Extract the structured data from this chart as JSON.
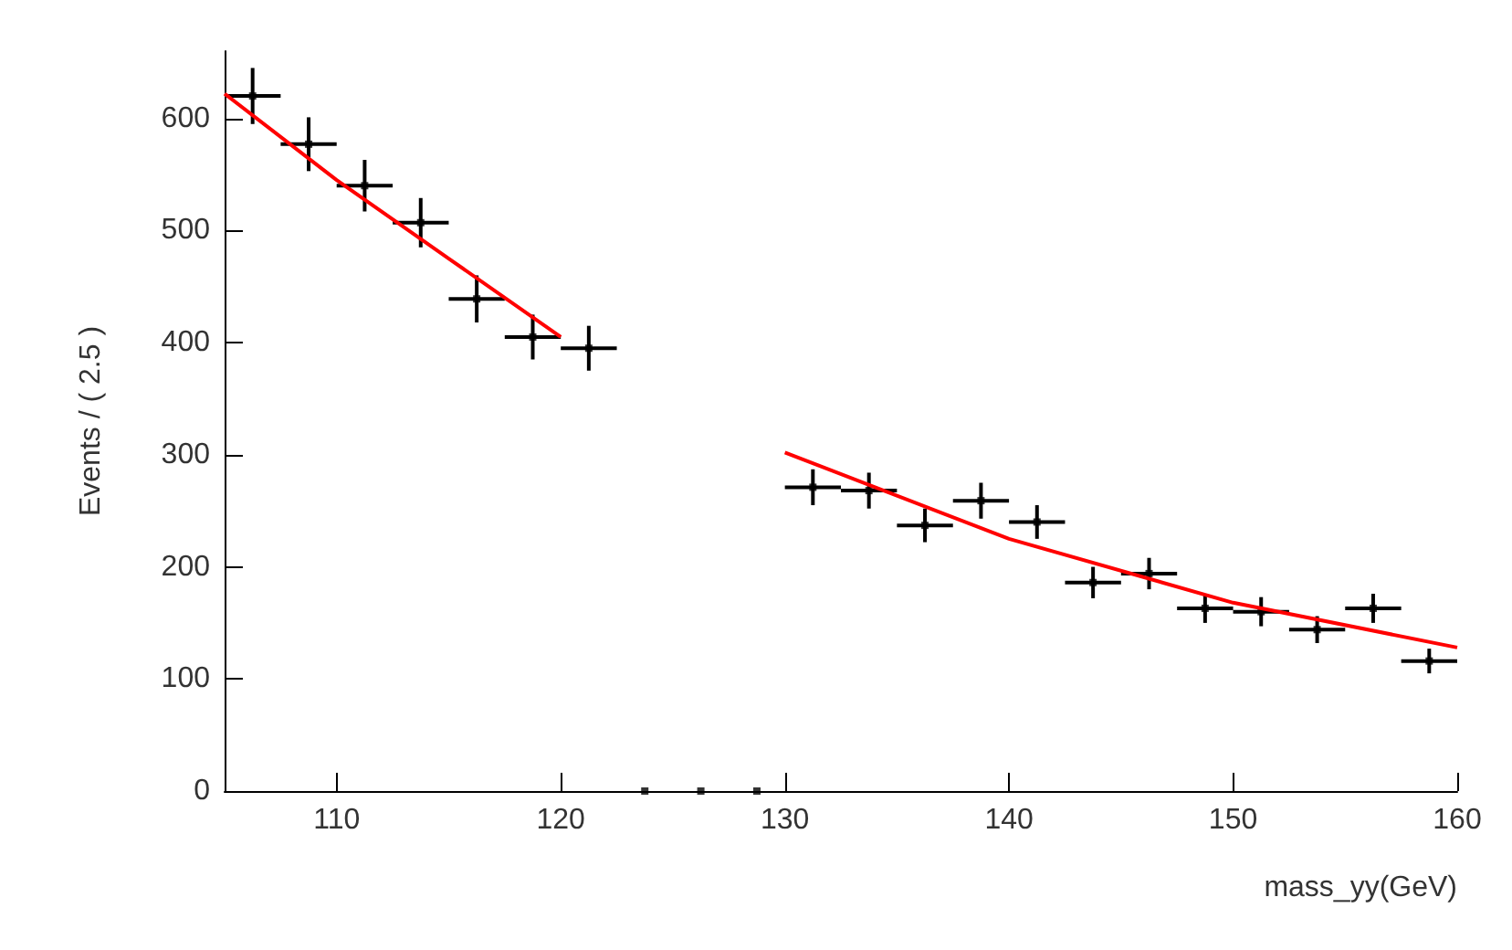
{
  "chart_data": {
    "type": "scatter",
    "xlabel": "mass_yy(GeV)",
    "ylabel": "Events / ( 2.5 )",
    "x": [
      106.25,
      108.75,
      111.25,
      113.75,
      116.25,
      118.75,
      121.25,
      123.75,
      126.25,
      128.75,
      131.25,
      133.75,
      136.25,
      138.75,
      141.25,
      143.75,
      146.25,
      148.75,
      151.25,
      153.75,
      156.25,
      158.75
    ],
    "series": [
      {
        "marker": "square",
        "color": "#000000",
        "values": [
          620,
          577,
          540,
          507,
          439,
          405,
          395,
          0,
          0,
          0,
          271,
          268,
          237,
          259,
          240,
          186,
          194,
          163,
          160,
          144,
          163,
          116
        ],
        "errors": [
          25,
          24,
          23,
          22,
          21,
          20,
          20,
          null,
          null,
          null,
          16,
          16,
          15,
          16,
          15,
          14,
          14,
          13,
          13,
          12,
          13,
          11
        ],
        "xerrors": [
          1.25,
          1.25,
          1.25,
          1.25,
          1.25,
          1.25,
          1.25,
          null,
          null,
          null,
          1.25,
          1.25,
          1.25,
          1.25,
          1.25,
          1.25,
          1.25,
          1.25,
          1.25,
          1.25,
          1.25,
          1.25
        ]
      },
      {
        "type": "line",
        "marker": "none",
        "color": "#ff0000",
        "x": [
          105,
          110,
          115,
          120
        ],
        "values": [
          622,
          545,
          475,
          405
        ]
      },
      {
        "type": "line",
        "marker": "none",
        "color": "#ff0000",
        "x": [
          130,
          140,
          150,
          160
        ],
        "values": [
          302,
          225,
          168,
          128
        ]
      }
    ],
    "xlim": [
      105,
      160
    ],
    "xticks": [
      110,
      120,
      130,
      140,
      150,
      160
    ],
    "ylim": [
      0,
      660
    ],
    "yticks": [
      0,
      100,
      200,
      300,
      400,
      500,
      600
    ],
    "grid": false,
    "line_style": "solid"
  }
}
